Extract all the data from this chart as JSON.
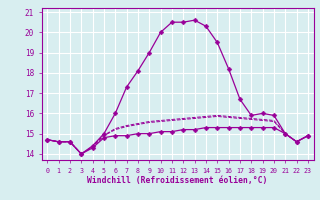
{
  "xlabel": "Windchill (Refroidissement éolien,°C)",
  "x": [
    0,
    1,
    2,
    3,
    4,
    5,
    6,
    7,
    8,
    9,
    10,
    11,
    12,
    13,
    14,
    15,
    16,
    17,
    18,
    19,
    20,
    21,
    22,
    23
  ],
  "line_main": [
    14.7,
    14.6,
    14.6,
    14.0,
    14.4,
    15.0,
    16.0,
    17.3,
    18.1,
    19.0,
    20.0,
    20.5,
    20.5,
    20.6,
    20.3,
    19.5,
    18.2,
    16.7,
    15.9,
    16.0,
    15.9,
    15.0,
    14.6,
    14.9
  ],
  "line_flat": [
    14.7,
    14.6,
    14.6,
    14.0,
    14.3,
    14.8,
    14.9,
    14.9,
    15.0,
    15.0,
    15.1,
    15.1,
    15.2,
    15.2,
    15.3,
    15.3,
    15.3,
    15.3,
    15.3,
    15.3,
    15.3,
    15.0,
    14.6,
    14.9
  ],
  "line_mid1": [
    14.7,
    14.6,
    14.6,
    14.0,
    14.35,
    14.9,
    15.2,
    15.35,
    15.45,
    15.55,
    15.6,
    15.65,
    15.7,
    15.75,
    15.8,
    15.85,
    15.8,
    15.75,
    15.7,
    15.65,
    15.6,
    15.0,
    14.6,
    14.9
  ],
  "line_mid2": [
    14.7,
    14.6,
    14.6,
    14.0,
    14.37,
    14.92,
    15.25,
    15.4,
    15.5,
    15.6,
    15.65,
    15.7,
    15.75,
    15.8,
    15.85,
    15.9,
    15.85,
    15.8,
    15.75,
    15.7,
    15.65,
    15.0,
    14.6,
    14.9
  ],
  "ylim": [
    13.7,
    21.2
  ],
  "yticks": [
    14,
    15,
    16,
    17,
    18,
    19,
    20,
    21
  ],
  "line_color": "#990099",
  "bg_color": "#d8eef0",
  "grid_color": "#ffffff"
}
